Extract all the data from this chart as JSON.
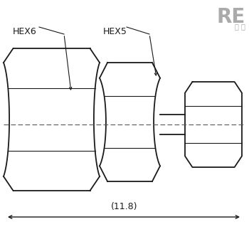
{
  "bg_color": "#ffffff",
  "line_color": "#1a1a1a",
  "centerline_color": "#555555",
  "hex6_label": "HEX6",
  "hex5_label": "HEX5",
  "dimension_label": "(11.8)",
  "logo_text": "RE",
  "logo_subtext": "里 山",
  "logo_color": "#aaaaaa",
  "lw": 1.3,
  "thin_lw": 0.8,
  "figsize": [
    3.5,
    3.5
  ],
  "dpi": 100
}
